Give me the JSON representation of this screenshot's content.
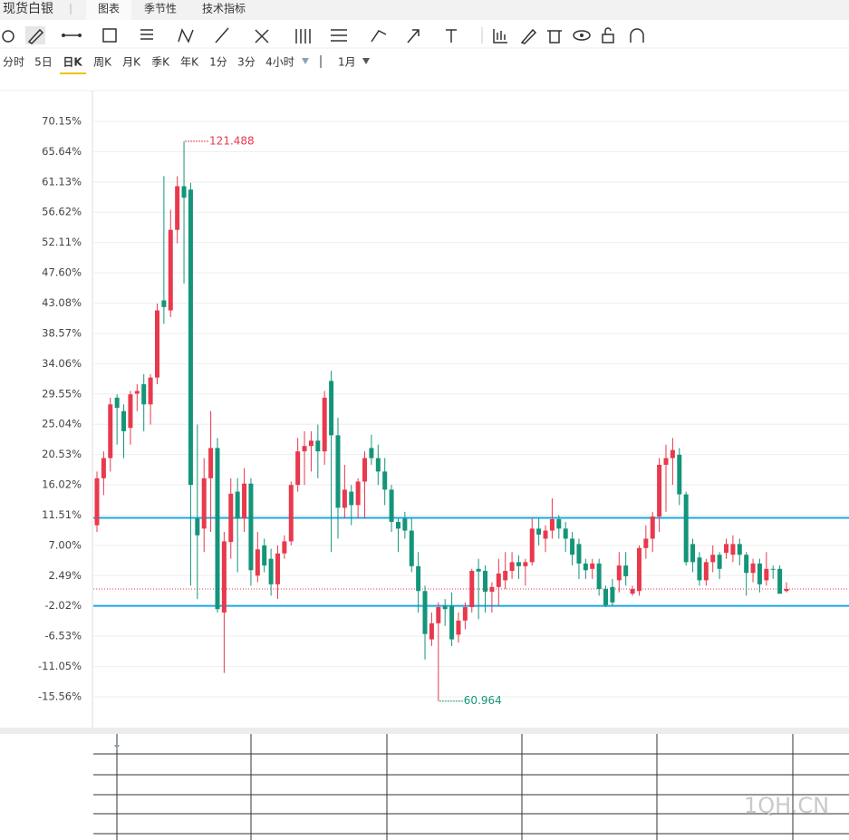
{
  "header": {
    "title": "现货白银",
    "tabs": [
      "图表",
      "季节性",
      "技术指标"
    ]
  },
  "periods": [
    "分时",
    "5日",
    "日K",
    "周K",
    "月K",
    "季K",
    "年K",
    "1分",
    "3分",
    "4小时"
  ],
  "range": "1月",
  "watermark": "1QH.CN",
  "chart_data": {
    "type": "candlestick",
    "up_color": "#e8394d",
    "down_color": "#14957a",
    "ylim": [
      -20.15,
      74.74
    ],
    "yticks": [
      {
        "value": 70.15,
        "label": "70.15%"
      },
      {
        "value": 65.64,
        "label": "65.64%"
      },
      {
        "value": 61.13,
        "label": "61.13%"
      },
      {
        "value": 56.62,
        "label": "56.62%"
      },
      {
        "value": 52.11,
        "label": "52.11%"
      },
      {
        "value": 47.6,
        "label": "47.60%"
      },
      {
        "value": 43.08,
        "label": "43.08%"
      },
      {
        "value": 38.57,
        "label": "38.57%"
      },
      {
        "value": 34.06,
        "label": "34.06%"
      },
      {
        "value": 29.55,
        "label": "29.55%"
      },
      {
        "value": 25.04,
        "label": "25.04%"
      },
      {
        "value": 20.53,
        "label": "20.53%"
      },
      {
        "value": 16.02,
        "label": "16.02%"
      },
      {
        "value": 11.51,
        "label": "11.51%"
      },
      {
        "value": 7.0,
        "label": "7.00%"
      },
      {
        "value": 2.49,
        "label": "2.49%"
      },
      {
        "value": -2.02,
        "label": "-2.02%"
      },
      {
        "value": -6.53,
        "label": "-6.53%"
      },
      {
        "value": -11.05,
        "label": "-11.05%"
      },
      {
        "value": -15.56,
        "label": "-15.56%"
      }
    ],
    "grid": true,
    "hlines": [
      {
        "value": 11.1,
        "color": "#1ea7e4"
      },
      {
        "value": -2.02,
        "color": "#1ea7e4"
      }
    ],
    "price_line": {
      "value": 0.5,
      "color": "#e8394d"
    },
    "max_label": {
      "text": "121.488",
      "color": "#e8394d"
    },
    "min_label": {
      "text": "60.964",
      "color": "#14957a"
    },
    "candles": [
      [
        10,
        18,
        9,
        17
      ],
      [
        17,
        21,
        14.5,
        20
      ],
      [
        20,
        29,
        18,
        28
      ],
      [
        29,
        29.5,
        22,
        27.5
      ],
      [
        27,
        28,
        20,
        24
      ],
      [
        24.5,
        30,
        22,
        29.5
      ],
      [
        29.6,
        31,
        27,
        30
      ],
      [
        31,
        32.5,
        24,
        28
      ],
      [
        28,
        32.5,
        25,
        32
      ],
      [
        32,
        43,
        31,
        42
      ],
      [
        43.5,
        62,
        40,
        42.5
      ],
      [
        42,
        57,
        41,
        54
      ],
      [
        54,
        62,
        52,
        60.5
      ],
      [
        60.5,
        67.2,
        46,
        58.8
      ],
      [
        60,
        61,
        1,
        16
      ],
      [
        11,
        25,
        -1,
        8.5
      ],
      [
        9.5,
        20,
        6,
        17
      ],
      [
        17,
        27,
        9,
        21.5
      ],
      [
        21.5,
        23,
        -3,
        -2.5
      ],
      [
        -3,
        9,
        -12,
        7.6
      ],
      [
        7.5,
        17,
        5,
        14.7
      ],
      [
        15,
        17,
        3,
        11
      ],
      [
        11,
        18.5,
        9,
        16.2
      ],
      [
        16.2,
        17,
        1,
        3.3
      ],
      [
        2.5,
        9,
        1.5,
        6.4
      ],
      [
        7,
        8,
        3,
        4
      ],
      [
        5,
        6.5,
        -0.5,
        1.2
      ],
      [
        1.2,
        7,
        -1,
        5.8
      ],
      [
        5.8,
        8.5,
        5,
        7.6
      ],
      [
        7.6,
        16.5,
        7,
        16
      ],
      [
        16,
        23,
        15,
        21
      ],
      [
        21,
        24,
        16,
        21.8
      ],
      [
        21.8,
        24,
        18,
        22.6
      ],
      [
        22.6,
        25,
        17,
        21
      ],
      [
        21,
        30,
        19,
        29
      ],
      [
        31.5,
        33,
        6,
        23.4
      ],
      [
        23.4,
        26,
        8,
        12.6
      ],
      [
        12.6,
        19,
        11,
        15.3
      ],
      [
        15,
        16,
        10,
        13
      ],
      [
        13,
        17,
        11,
        16.5
      ],
      [
        16.5,
        21,
        11,
        20
      ],
      [
        21.5,
        23.5,
        19,
        20
      ],
      [
        20,
        22,
        16,
        18
      ],
      [
        18,
        20,
        13,
        15.3
      ],
      [
        15.3,
        16,
        9,
        10.5
      ],
      [
        10.5,
        11,
        6,
        9.5
      ],
      [
        11,
        12,
        8,
        9.2
      ],
      [
        9.2,
        11,
        3,
        3.9
      ],
      [
        3.9,
        6,
        -3,
        0.2
      ],
      [
        0.2,
        1,
        -10,
        -6.2
      ],
      [
        -7,
        -3,
        -8,
        -4.6
      ],
      [
        -4.6,
        -1.5,
        -16.2,
        -2.2
      ],
      [
        -2,
        -1,
        -5,
        -2.5
      ],
      [
        -2,
        0,
        -8,
        -7
      ],
      [
        -6.3,
        -3,
        -7.5,
        -4.2
      ],
      [
        -4.2,
        -1.5,
        -5.5,
        -2.2
      ],
      [
        -2.2,
        3.5,
        -3,
        3.2
      ],
      [
        3.5,
        5,
        -4,
        3.1
      ],
      [
        3.2,
        4,
        -3,
        0.1
      ],
      [
        0.1,
        1.5,
        -3,
        0.8
      ],
      [
        0.8,
        5,
        -2,
        2.8
      ],
      [
        1.8,
        6,
        0.5,
        3.2
      ],
      [
        3.2,
        6,
        2,
        4.5
      ],
      [
        4.5,
        5.5,
        2,
        3.9
      ],
      [
        3.9,
        5,
        1,
        4.5
      ],
      [
        4.5,
        11,
        4,
        9.5
      ],
      [
        9.5,
        11,
        7,
        8.6
      ],
      [
        8,
        10,
        6,
        9.2
      ],
      [
        9.2,
        14,
        8,
        10.9
      ],
      [
        10.9,
        11.5,
        8,
        9.5
      ],
      [
        9.5,
        10.5,
        6,
        8
      ],
      [
        8,
        9,
        4,
        5.6
      ],
      [
        7.2,
        8,
        2,
        4.3
      ],
      [
        4.3,
        5,
        2,
        3.3
      ],
      [
        3.5,
        5,
        2,
        4.3
      ],
      [
        4.3,
        5,
        -0.5,
        0.5
      ],
      [
        0.5,
        1,
        -2.2,
        -1.9
      ],
      [
        0.8,
        2,
        -2,
        -1.5
      ],
      [
        1.8,
        6,
        0,
        4
      ],
      [
        4,
        6,
        1,
        2.4
      ],
      [
        -0.2,
        1,
        -0.5,
        0.5
      ],
      [
        0.2,
        7,
        -0.5,
        6.6
      ],
      [
        6.6,
        10,
        5,
        8
      ],
      [
        8,
        12,
        6,
        11.3
      ],
      [
        11.3,
        20,
        9,
        19
      ],
      [
        19,
        22,
        12,
        20
      ],
      [
        20,
        23,
        16,
        21.2
      ],
      [
        20.5,
        21.5,
        13,
        14.6
      ],
      [
        14.6,
        15,
        4,
        4.5
      ],
      [
        7.2,
        8,
        3,
        4.5
      ],
      [
        5.2,
        6,
        1,
        1.8
      ],
      [
        1.8,
        5,
        1,
        4.5
      ],
      [
        4.5,
        7,
        3,
        5.6
      ],
      [
        5.6,
        6,
        2,
        3.5
      ],
      [
        5.9,
        8,
        5,
        7.2
      ],
      [
        5.6,
        8.5,
        4.5,
        7.2
      ],
      [
        7.2,
        8,
        4,
        5.6
      ],
      [
        5.6,
        6,
        -0.5,
        2.9
      ],
      [
        2.9,
        5,
        1.5,
        4.3
      ],
      [
        4.3,
        5,
        0,
        1.2
      ],
      [
        1.8,
        6,
        1,
        3.5
      ],
      [
        3.5,
        4,
        2,
        3.4
      ],
      [
        3.5,
        4,
        -0.2,
        -0.2
      ],
      [
        0.2,
        1.5,
        0,
        0.5
      ]
    ]
  }
}
